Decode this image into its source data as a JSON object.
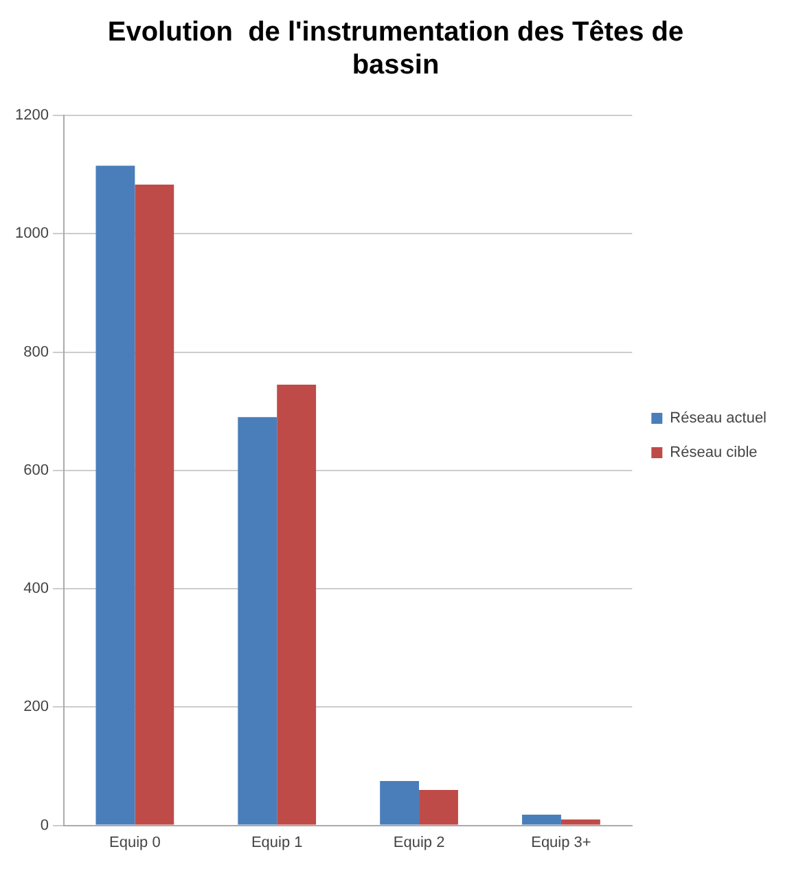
{
  "chart_data": {
    "type": "bar",
    "title": "Evolution  de l'instrumentation des Têtes de bassin",
    "categories": [
      "Equip 0",
      "Equip 1",
      "Equip 2",
      "Equip 3+"
    ],
    "series": [
      {
        "name": "Réseau actuel",
        "color": "#4a7ebb",
        "values": [
          1115,
          690,
          75,
          18
        ]
      },
      {
        "name": "Réseau cible",
        "color": "#be4b48",
        "values": [
          1083,
          745,
          60,
          10
        ]
      }
    ],
    "ylim": [
      0,
      1200
    ],
    "yticks": [
      0,
      200,
      400,
      600,
      800,
      1000,
      1200
    ],
    "grid": "y",
    "legend": "right"
  }
}
